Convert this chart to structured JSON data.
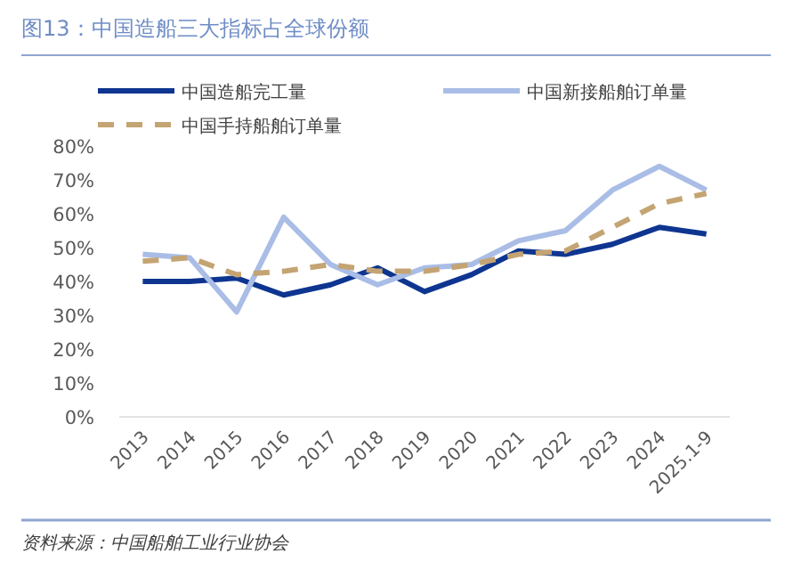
{
  "chart_data": {
    "type": "line",
    "title": "图13：中国造船三大指标占全球份额",
    "categories": [
      "2013",
      "2014",
      "2015",
      "2016",
      "2017",
      "2018",
      "2019",
      "2020",
      "2021",
      "2022",
      "2023",
      "2024",
      "2025.1-9"
    ],
    "series": [
      {
        "name": "中国造船完工量",
        "color": "#0e3590",
        "line_style": "solid",
        "values": [
          40,
          40,
          41,
          36,
          39,
          44,
          37,
          42,
          49,
          48,
          51,
          56,
          54
        ]
      },
      {
        "name": "中国新接船舶订单量",
        "color": "#a9bde6",
        "line_style": "solid",
        "values": [
          48,
          47,
          31,
          59,
          45,
          39,
          44,
          45,
          52,
          55,
          67,
          74,
          67
        ]
      },
      {
        "name": "中国手持船舶订单量",
        "color": "#c4a473",
        "line_style": "dashed",
        "values": [
          46,
          47,
          42,
          43,
          45,
          43,
          43,
          45,
          48,
          49,
          56,
          63,
          66
        ]
      }
    ],
    "ylim": [
      0,
      80
    ],
    "yticks": [
      {
        "value": 0,
        "label": "0%"
      },
      {
        "value": 10,
        "label": "10%"
      },
      {
        "value": 20,
        "label": "20%"
      },
      {
        "value": 30,
        "label": "30%"
      },
      {
        "value": 40,
        "label": "40%"
      },
      {
        "value": 50,
        "label": "50%"
      },
      {
        "value": 60,
        "label": "60%"
      },
      {
        "value": 70,
        "label": "70%"
      },
      {
        "value": 80,
        "label": "80%"
      }
    ],
    "legend": "top",
    "annotations": [
      "资料来源：中国船舶工业行业协会"
    ]
  }
}
